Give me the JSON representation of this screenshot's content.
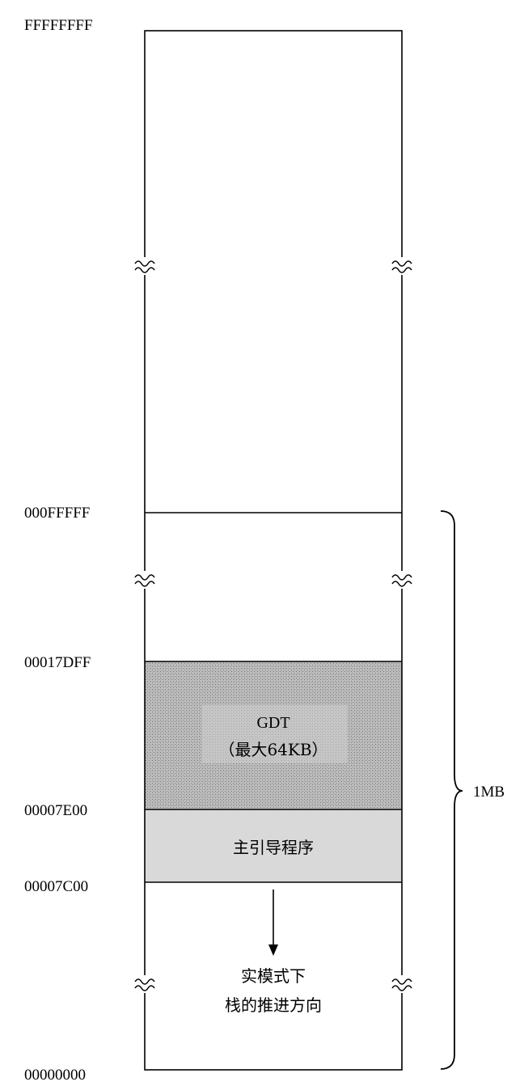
{
  "addresses": {
    "top": "FFFFFFFF",
    "mb_boundary": "000FFFFF",
    "gdt_top": "00017DFF",
    "boot_top": "00007E00",
    "boot_bottom": "00007C00",
    "bottom": "00000000"
  },
  "regions": {
    "gdt": {
      "title": "GDT",
      "subtitle": "（最大64KB）",
      "fill": "#b8b8b8"
    },
    "boot": {
      "label": "主引导程序",
      "fill": "#d9d9d9"
    }
  },
  "stack_note": {
    "line1": "实模式下",
    "line2": "栈的推进方向"
  },
  "brace_label": "1MB"
}
